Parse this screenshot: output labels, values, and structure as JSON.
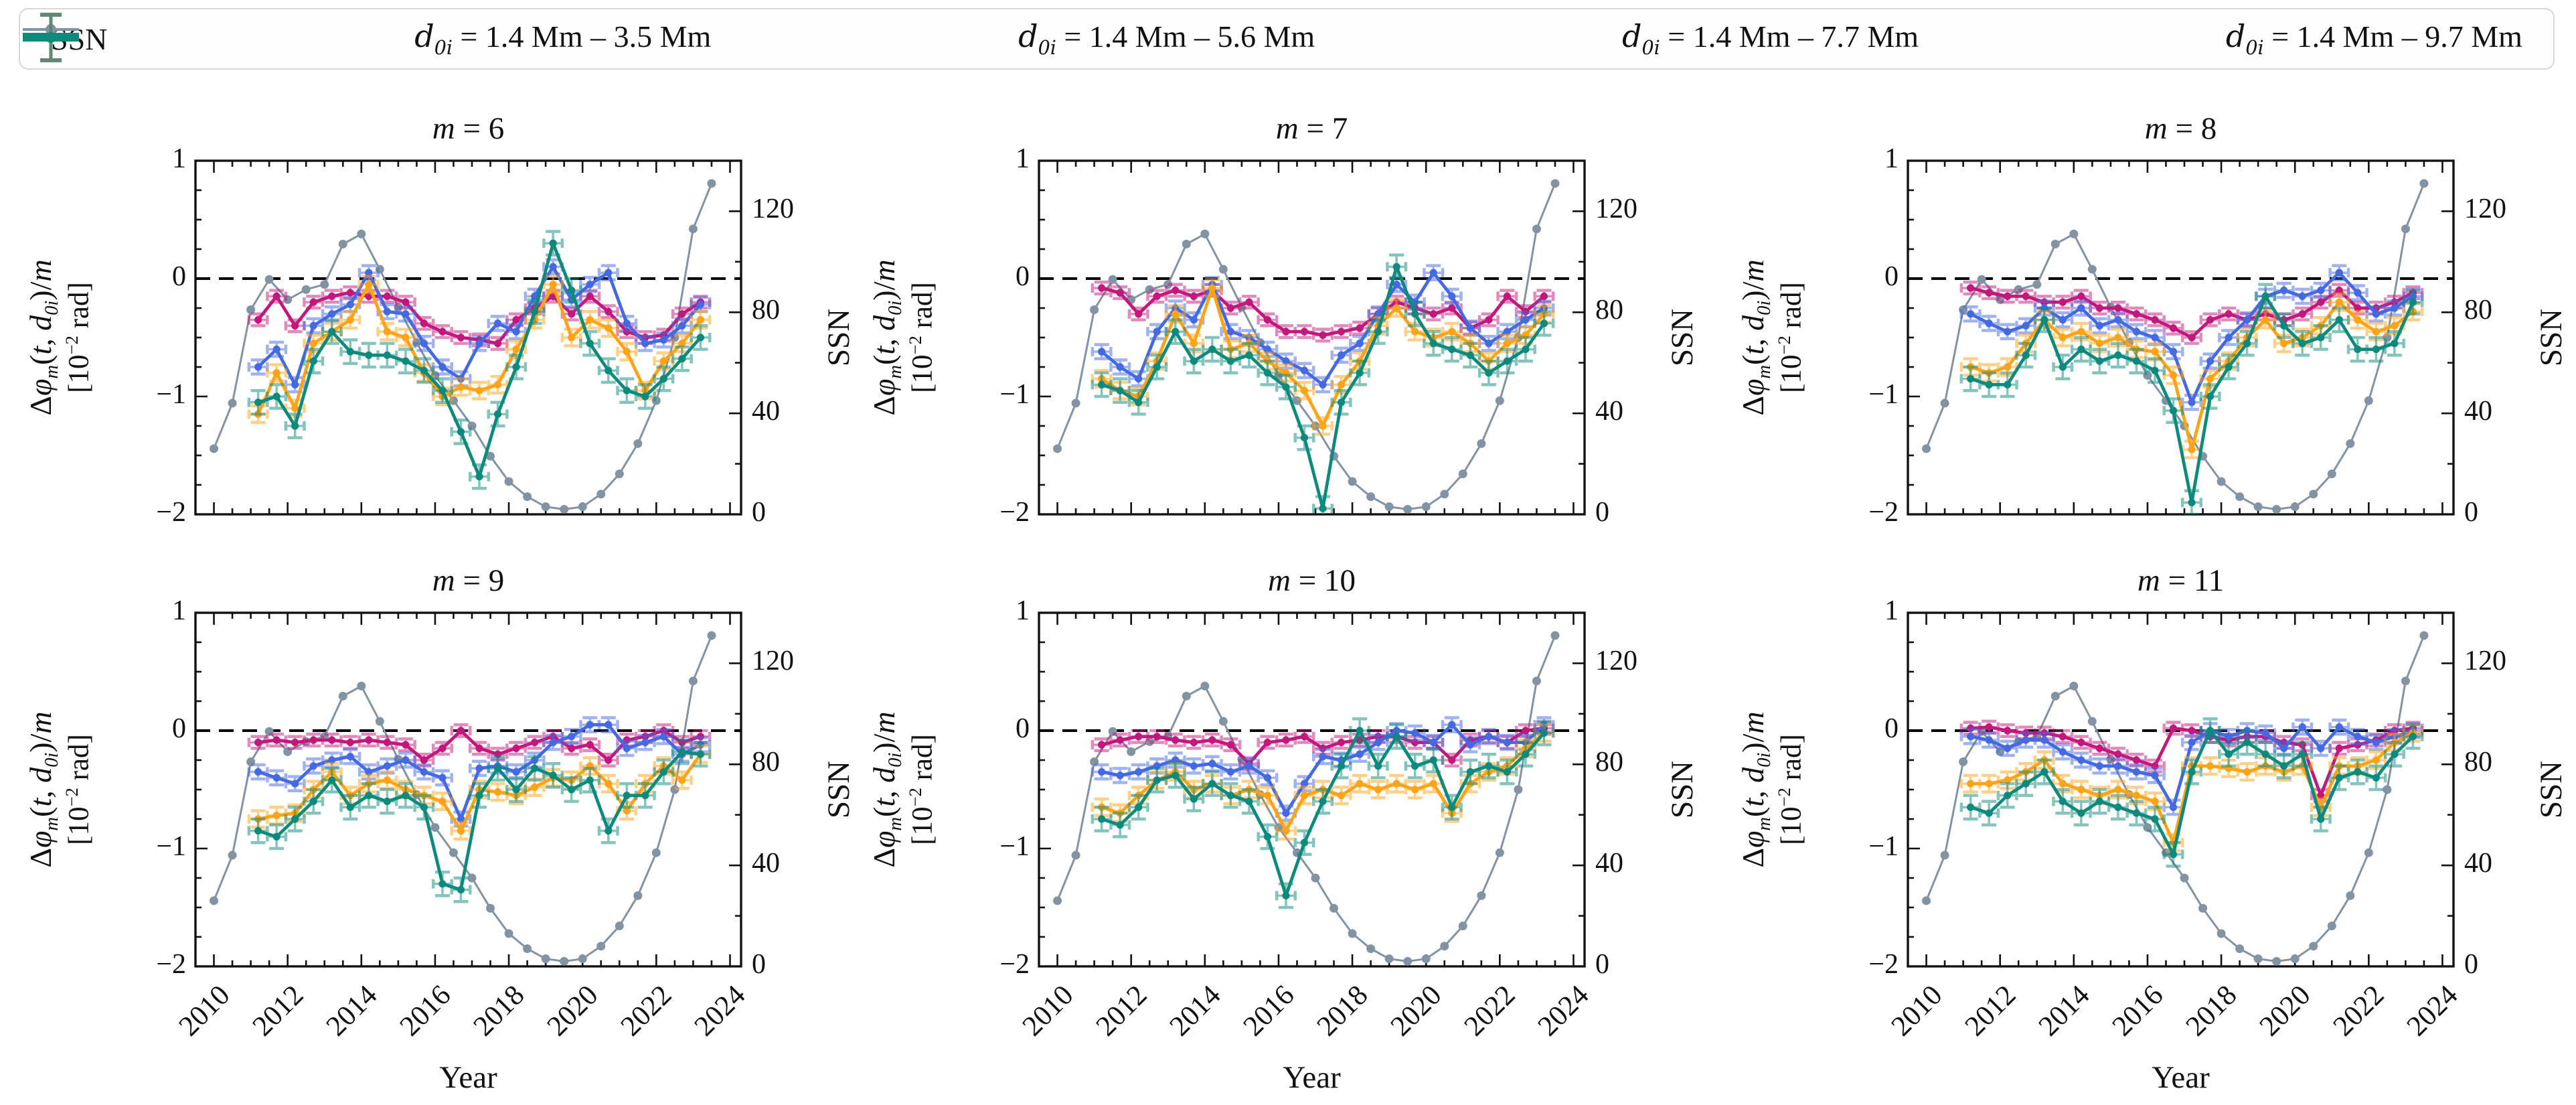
{
  "figure": {
    "description_tag": ""
  },
  "legend": {
    "items": [
      {
        "key": "ssn",
        "label": "SSN",
        "type": "line"
      },
      {
        "key": "d35",
        "label": "{d}_{0i} = 1.4 Mm – 3.5 Mm",
        "type": "errorbar"
      },
      {
        "key": "d56",
        "label": "{d}_{0i} = 1.4 Mm – 5.6 Mm",
        "type": "errorbar"
      },
      {
        "key": "d77",
        "label": "{d}_{0i} = 1.4 Mm – 7.7 Mm",
        "type": "errorbar"
      },
      {
        "key": "d97",
        "label": "{d}_{0i} = 1.4 Mm – 9.7 Mm",
        "type": "errorbar"
      }
    ]
  },
  "colors": {
    "ssn": "#8293A3",
    "d35": "#C2187E",
    "d56": "#4569E0",
    "d77": "#FFA317",
    "d97": "#0E8A7D",
    "frame": "#111111",
    "zero_line": "#000000"
  },
  "chart_data": {
    "type": "line",
    "grid": false,
    "legend_position": "top",
    "xlabel": "Year",
    "ylabel_line1": "Δ{φ}_{m}({t}, {d}_{0i})/{m}",
    "ylabel_line2": "[10^{−2} rad]",
    "y2label": "SSN",
    "xlim": [
      2009.5,
      2024.3
    ],
    "ylim": [
      -2,
      1
    ],
    "y2lim": [
      0,
      140
    ],
    "xticks": {
      "values": [
        2010,
        2012,
        2014,
        2016,
        2018,
        2020,
        2022,
        2024
      ],
      "labels": [
        "2010",
        "2012",
        "2014",
        "2016",
        "2018",
        "2020",
        "2022",
        "2024"
      ]
    },
    "yticks": {
      "values": [
        1,
        0,
        -1,
        -2
      ],
      "labels": [
        "1",
        "0",
        "−1",
        "−2"
      ]
    },
    "y2ticks": {
      "values": [
        0,
        40,
        80,
        120
      ],
      "labels": [
        "0",
        "40",
        "80",
        "120"
      ]
    },
    "zero_line": 0,
    "ssn": {
      "x": [
        2010.0,
        2010.5,
        2011.0,
        2011.5,
        2012.0,
        2012.5,
        2013.0,
        2013.5,
        2014.0,
        2014.5,
        2015.0,
        2015.5,
        2016.0,
        2016.5,
        2017.0,
        2017.5,
        2018.0,
        2018.5,
        2019.0,
        2019.5,
        2020.0,
        2020.5,
        2021.0,
        2021.5,
        2022.0,
        2022.5,
        2023.0,
        2023.5
      ],
      "y": [
        26,
        44,
        81,
        93,
        85,
        89,
        91,
        107,
        111,
        97,
        82,
        68,
        55,
        45,
        35,
        23,
        13,
        7,
        3,
        2,
        3,
        8,
        16,
        28,
        45,
        70,
        113,
        131
      ]
    },
    "series_x": [
      2011.2,
      2011.7,
      2012.2,
      2012.7,
      2013.2,
      2013.7,
      2014.2,
      2014.7,
      2015.2,
      2015.7,
      2016.2,
      2016.7,
      2017.2,
      2017.7,
      2018.2,
      2018.7,
      2019.2,
      2019.7,
      2020.2,
      2020.7,
      2021.2,
      2021.7,
      2022.2,
      2022.7,
      2023.2
    ],
    "series_meta": [
      {
        "key": "d35",
        "yerr": 0.05,
        "xerr": 0.25
      },
      {
        "key": "d56",
        "yerr": 0.06,
        "xerr": 0.25
      },
      {
        "key": "d77",
        "yerr": 0.07,
        "xerr": 0.25
      },
      {
        "key": "d97",
        "yerr": 0.1,
        "xerr": 0.25
      }
    ],
    "panels": [
      {
        "title": "{m} = 6",
        "series": {
          "d35": [
            -0.35,
            -0.15,
            -0.4,
            -0.2,
            -0.15,
            -0.12,
            -0.15,
            -0.15,
            -0.2,
            -0.38,
            -0.45,
            -0.5,
            -0.52,
            -0.55,
            -0.35,
            -0.25,
            -0.15,
            -0.3,
            -0.15,
            -0.28,
            -0.45,
            -0.5,
            -0.48,
            -0.3,
            -0.2
          ],
          "d56": [
            -0.75,
            -0.6,
            -0.9,
            -0.4,
            -0.3,
            -0.22,
            0.05,
            -0.28,
            -0.3,
            -0.55,
            -0.75,
            -0.85,
            -0.55,
            -0.38,
            -0.45,
            -0.15,
            0.1,
            -0.18,
            -0.05,
            0.05,
            -0.38,
            -0.55,
            -0.52,
            -0.4,
            -0.22
          ],
          "d77": [
            -1.15,
            -0.8,
            -1.1,
            -0.55,
            -0.45,
            -0.35,
            -0.05,
            -0.45,
            -0.5,
            -0.8,
            -1.0,
            -0.92,
            -0.95,
            -0.9,
            -0.6,
            -0.35,
            -0.05,
            -0.5,
            -0.35,
            -0.42,
            -0.62,
            -0.95,
            -0.7,
            -0.55,
            -0.35
          ],
          "d97": [
            -1.05,
            -1.0,
            -1.25,
            -0.7,
            -0.45,
            -0.62,
            -0.65,
            -0.65,
            -0.7,
            -0.78,
            -0.95,
            -1.3,
            -1.68,
            -1.15,
            -0.75,
            -0.28,
            0.3,
            -0.1,
            -0.55,
            -0.78,
            -0.95,
            -1.0,
            -0.85,
            -0.68,
            -0.5
          ]
        }
      },
      {
        "title": "{m} = 7",
        "series": {
          "d35": [
            -0.08,
            -0.12,
            -0.3,
            -0.15,
            -0.1,
            -0.15,
            -0.1,
            -0.25,
            -0.2,
            -0.35,
            -0.45,
            -0.45,
            -0.48,
            -0.45,
            -0.42,
            -0.3,
            -0.2,
            -0.25,
            -0.3,
            -0.25,
            -0.42,
            -0.35,
            -0.15,
            -0.28,
            -0.15
          ],
          "d56": [
            -0.62,
            -0.75,
            -0.85,
            -0.45,
            -0.25,
            -0.35,
            -0.05,
            -0.45,
            -0.5,
            -0.6,
            -0.7,
            -0.78,
            -0.9,
            -0.65,
            -0.55,
            -0.3,
            -0.05,
            -0.2,
            0.05,
            -0.15,
            -0.42,
            -0.55,
            -0.45,
            -0.35,
            -0.25
          ],
          "d77": [
            -0.85,
            -0.95,
            -1.0,
            -0.7,
            -0.3,
            -0.55,
            -0.08,
            -0.6,
            -0.55,
            -0.7,
            -0.8,
            -0.95,
            -1.25,
            -0.9,
            -0.7,
            -0.4,
            -0.25,
            -0.45,
            -0.5,
            -0.45,
            -0.55,
            -0.7,
            -0.55,
            -0.48,
            -0.3
          ],
          "d97": [
            -0.9,
            -0.95,
            -1.05,
            -0.75,
            -0.45,
            -0.7,
            -0.6,
            -0.7,
            -0.65,
            -0.8,
            -0.92,
            -1.35,
            -1.95,
            -1.05,
            -0.8,
            -0.45,
            0.1,
            -0.3,
            -0.55,
            -0.6,
            -0.65,
            -0.8,
            -0.7,
            -0.6,
            -0.38
          ]
        }
      },
      {
        "title": "{m} = 8",
        "series": {
          "d35": [
            -0.08,
            -0.12,
            -0.15,
            -0.15,
            -0.2,
            -0.2,
            -0.15,
            -0.25,
            -0.25,
            -0.3,
            -0.35,
            -0.42,
            -0.5,
            -0.35,
            -0.3,
            -0.35,
            -0.3,
            -0.35,
            -0.3,
            -0.2,
            -0.1,
            -0.25,
            -0.25,
            -0.2,
            -0.12
          ],
          "d56": [
            -0.3,
            -0.38,
            -0.45,
            -0.4,
            -0.25,
            -0.35,
            -0.25,
            -0.4,
            -0.35,
            -0.45,
            -0.5,
            -0.62,
            -1.05,
            -0.7,
            -0.5,
            -0.35,
            -0.15,
            -0.1,
            -0.15,
            -0.1,
            0.05,
            -0.12,
            -0.3,
            -0.25,
            -0.15
          ],
          "d77": [
            -0.75,
            -0.8,
            -0.75,
            -0.55,
            -0.35,
            -0.5,
            -0.45,
            -0.55,
            -0.5,
            -0.6,
            -0.62,
            -0.82,
            -1.45,
            -0.85,
            -0.7,
            -0.5,
            -0.35,
            -0.55,
            -0.5,
            -0.4,
            -0.2,
            -0.35,
            -0.45,
            -0.4,
            -0.28
          ],
          "d97": [
            -0.85,
            -0.9,
            -0.9,
            -0.65,
            -0.35,
            -0.75,
            -0.6,
            -0.7,
            -0.65,
            -0.7,
            -0.78,
            -1.12,
            -1.9,
            -1.0,
            -0.75,
            -0.55,
            -0.15,
            -0.4,
            -0.55,
            -0.5,
            -0.35,
            -0.6,
            -0.6,
            -0.55,
            -0.2
          ]
        }
      },
      {
        "title": "{m} = 9",
        "series": {
          "d35": [
            -0.1,
            -0.08,
            -0.1,
            -0.08,
            -0.08,
            -0.1,
            -0.08,
            -0.1,
            -0.12,
            -0.25,
            -0.15,
            0.0,
            -0.15,
            -0.2,
            -0.15,
            -0.1,
            -0.05,
            -0.15,
            -0.12,
            -0.25,
            -0.08,
            -0.05,
            0.0,
            -0.1,
            -0.05
          ],
          "d56": [
            -0.35,
            -0.4,
            -0.45,
            -0.3,
            -0.25,
            -0.22,
            -0.35,
            -0.3,
            -0.25,
            -0.35,
            -0.4,
            -0.75,
            -0.32,
            -0.3,
            -0.35,
            -0.25,
            -0.1,
            -0.05,
            0.05,
            0.05,
            -0.15,
            -0.1,
            -0.05,
            -0.2,
            -0.12
          ],
          "d77": [
            -0.75,
            -0.72,
            -0.7,
            -0.5,
            -0.35,
            -0.55,
            -0.45,
            -0.42,
            -0.5,
            -0.55,
            -0.6,
            -0.85,
            -0.5,
            -0.52,
            -0.55,
            -0.48,
            -0.4,
            -0.42,
            -0.3,
            -0.45,
            -0.68,
            -0.45,
            -0.3,
            -0.42,
            -0.2
          ],
          "d97": [
            -0.85,
            -0.9,
            -0.75,
            -0.6,
            -0.42,
            -0.65,
            -0.55,
            -0.6,
            -0.55,
            -0.65,
            -1.3,
            -1.35,
            -0.55,
            -0.32,
            -0.5,
            -0.32,
            -0.38,
            -0.5,
            -0.42,
            -0.85,
            -0.55,
            -0.55,
            -0.35,
            -0.18,
            -0.2
          ]
        }
      },
      {
        "title": "{m} = 10",
        "series": {
          "d35": [
            -0.12,
            -0.08,
            -0.05,
            -0.05,
            -0.08,
            -0.1,
            -0.08,
            -0.12,
            -0.28,
            -0.1,
            -0.08,
            -0.05,
            -0.15,
            -0.1,
            -0.08,
            -0.05,
            -0.05,
            -0.1,
            -0.1,
            -0.25,
            -0.08,
            -0.05,
            -0.1,
            0.0,
            0.02
          ],
          "d56": [
            -0.35,
            -0.38,
            -0.35,
            -0.3,
            -0.25,
            -0.3,
            -0.28,
            -0.35,
            -0.3,
            -0.4,
            -0.7,
            -0.45,
            -0.22,
            -0.25,
            -0.2,
            -0.1,
            0.0,
            -0.02,
            -0.1,
            0.05,
            -0.12,
            -0.05,
            -0.1,
            -0.1,
            0.05
          ],
          "d77": [
            -0.65,
            -0.7,
            -0.55,
            -0.42,
            -0.35,
            -0.5,
            -0.45,
            -0.55,
            -0.5,
            -0.55,
            -0.85,
            -0.55,
            -0.5,
            -0.55,
            -0.45,
            -0.5,
            -0.45,
            -0.5,
            -0.45,
            -0.7,
            -0.45,
            -0.35,
            -0.3,
            -0.15,
            -0.02
          ],
          "d97": [
            -0.75,
            -0.8,
            -0.65,
            -0.42,
            -0.38,
            -0.58,
            -0.45,
            -0.55,
            -0.6,
            -0.9,
            -1.4,
            -0.95,
            -0.6,
            -0.3,
            0.0,
            -0.3,
            -0.05,
            -0.3,
            -0.25,
            -0.65,
            -0.35,
            -0.3,
            -0.35,
            -0.2,
            -0.02
          ]
        }
      },
      {
        "title": "{m} = 11",
        "series": {
          "d35": [
            0.02,
            0.03,
            0.0,
            -0.02,
            -0.02,
            -0.05,
            -0.1,
            -0.15,
            -0.2,
            -0.25,
            -0.3,
            0.02,
            0.0,
            -0.05,
            -0.08,
            -0.05,
            -0.05,
            -0.1,
            -0.12,
            -0.55,
            -0.15,
            -0.12,
            -0.08,
            0.0,
            0.02
          ],
          "d56": [
            -0.05,
            -0.08,
            -0.15,
            -0.08,
            -0.08,
            -0.18,
            -0.25,
            -0.3,
            -0.3,
            -0.35,
            -0.38,
            -0.65,
            -0.1,
            0.0,
            -0.05,
            0.0,
            -0.02,
            -0.15,
            0.03,
            -0.15,
            0.03,
            -0.05,
            -0.1,
            -0.05,
            0.0
          ],
          "d77": [
            -0.45,
            -0.45,
            -0.42,
            -0.35,
            -0.25,
            -0.45,
            -0.5,
            -0.55,
            -0.5,
            -0.55,
            -0.6,
            -0.95,
            -0.3,
            -0.3,
            -0.32,
            -0.35,
            -0.3,
            -0.35,
            -0.3,
            -0.65,
            -0.3,
            -0.3,
            -0.25,
            -0.1,
            -0.02
          ],
          "d97": [
            -0.65,
            -0.7,
            -0.55,
            -0.45,
            -0.35,
            -0.6,
            -0.7,
            -0.6,
            -0.65,
            -0.7,
            -0.75,
            -1.05,
            -0.35,
            0.0,
            -0.2,
            -0.1,
            -0.2,
            -0.3,
            -0.2,
            -0.75,
            -0.4,
            -0.35,
            -0.4,
            -0.2,
            -0.05
          ]
        }
      }
    ]
  }
}
